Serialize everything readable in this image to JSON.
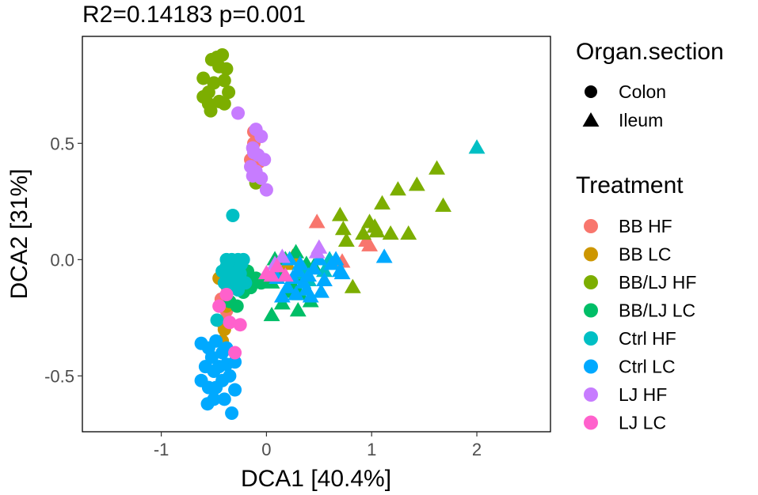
{
  "chart_data": {
    "type": "scatter",
    "title": "R2=0.14183  p=0.001",
    "xlabel": "DCA1   [40.4%]",
    "ylabel": "DCA2   [31%]",
    "xlim": [
      -1.75,
      2.7
    ],
    "ylim": [
      -0.74,
      0.96
    ],
    "xticks": [
      -1,
      0,
      1,
      2
    ],
    "xtick_labels": [
      "-1",
      "0",
      "1",
      "2"
    ],
    "yticks": [
      -0.5,
      0.0,
      0.5
    ],
    "ytick_labels": [
      "-0.5",
      "0.0",
      "0.5"
    ],
    "grid": false,
    "shape_legend": {
      "title": "Organ.section",
      "items": [
        {
          "label": "Colon",
          "shape": "circle"
        },
        {
          "label": "Ileum",
          "shape": "triangle"
        }
      ]
    },
    "color_legend": {
      "title": "Treatment",
      "items": [
        {
          "label": "BB HF",
          "color": "#F8766D"
        },
        {
          "label": "BB LC",
          "color": "#CD9600"
        },
        {
          "label": "BB/LJ HF",
          "color": "#7CAE00"
        },
        {
          "label": "BB/LJ LC",
          "color": "#00BE67"
        },
        {
          "label": "Ctrl HF",
          "color": "#00BFC4"
        },
        {
          "label": "Ctrl LC",
          "color": "#00A9FF"
        },
        {
          "label": "LJ HF",
          "color": "#C77CFF"
        },
        {
          "label": "LJ LC",
          "color": "#FF61CC"
        }
      ]
    },
    "series": [
      {
        "name": "BB HF",
        "shape": "circle",
        "points": [
          [
            -0.12,
            0.55
          ],
          [
            -0.15,
            0.43
          ],
          [
            -0.07,
            0.42
          ],
          [
            -0.1,
            0.35
          ],
          [
            -0.12,
            0.5
          ],
          [
            -0.37,
            -0.12
          ],
          [
            -0.43,
            -0.17
          ],
          [
            -0.38,
            -0.22
          ],
          [
            -0.42,
            -0.27
          ]
        ]
      },
      {
        "name": "BB HF",
        "shape": "triangle",
        "points": [
          [
            0.48,
            0.16
          ],
          [
            0.95,
            0.08
          ],
          [
            0.98,
            0.06
          ],
          [
            0.72,
            -0.01
          ],
          [
            0.36,
            -0.05
          ]
        ]
      },
      {
        "name": "BB LC",
        "shape": "circle",
        "points": [
          [
            -0.45,
            -0.08
          ],
          [
            -0.4,
            -0.3
          ],
          [
            -0.38,
            -0.2
          ],
          [
            -0.32,
            -0.1
          ],
          [
            -0.42,
            -0.35
          ]
        ]
      },
      {
        "name": "BB LC",
        "shape": "triangle",
        "points": [
          [
            0.2,
            -0.02
          ],
          [
            0.25,
            0.01
          ],
          [
            0.15,
            -0.06
          ]
        ]
      },
      {
        "name": "BB/LJ HF",
        "shape": "circle",
        "points": [
          [
            -0.6,
            0.78
          ],
          [
            -0.55,
            0.72
          ],
          [
            -0.5,
            0.76
          ],
          [
            -0.45,
            0.83
          ],
          [
            -0.4,
            0.77
          ],
          [
            -0.47,
            0.87
          ],
          [
            -0.52,
            0.86
          ],
          [
            -0.42,
            0.88
          ],
          [
            -0.38,
            0.82
          ],
          [
            -0.55,
            0.67
          ],
          [
            -0.6,
            0.7
          ],
          [
            -0.45,
            0.68
          ],
          [
            -0.53,
            0.64
          ],
          [
            -0.4,
            0.67
          ],
          [
            -0.36,
            0.72
          ],
          [
            -0.1,
            0.33
          ]
        ]
      },
      {
        "name": "BB/LJ HF",
        "shape": "triangle",
        "points": [
          [
            0.7,
            0.19
          ],
          [
            0.73,
            0.13
          ],
          [
            0.76,
            0.08
          ],
          [
            0.92,
            0.11
          ],
          [
            0.98,
            0.16
          ],
          [
            1.03,
            0.14
          ],
          [
            1.05,
            0.12
          ],
          [
            1.1,
            0.24
          ],
          [
            1.18,
            0.11
          ],
          [
            1.25,
            0.3
          ],
          [
            1.35,
            0.11
          ],
          [
            1.43,
            0.32
          ],
          [
            1.62,
            0.39
          ],
          [
            1.68,
            0.23
          ],
          [
            0.82,
            -0.12
          ]
        ]
      },
      {
        "name": "BB/LJ LC",
        "shape": "circle",
        "points": [
          [
            -0.3,
            -0.08
          ],
          [
            -0.25,
            -0.1
          ],
          [
            -0.2,
            -0.06
          ],
          [
            -0.15,
            -0.12
          ],
          [
            -0.1,
            -0.08
          ],
          [
            -0.35,
            -0.18
          ],
          [
            -0.28,
            -0.2
          ],
          [
            -0.05,
            -0.1
          ],
          [
            -0.22,
            -0.14
          ],
          [
            -0.18,
            -0.05
          ]
        ]
      },
      {
        "name": "BB/LJ LC",
        "shape": "triangle",
        "points": [
          [
            0.05,
            -0.24
          ],
          [
            0.15,
            -0.19
          ],
          [
            0.3,
            -0.22
          ],
          [
            0.32,
            -0.15
          ],
          [
            0.42,
            -0.18
          ],
          [
            0.05,
            -0.1
          ],
          [
            0.2,
            -0.14
          ],
          [
            0.28,
            0.03
          ],
          [
            0.38,
            -0.02
          ],
          [
            0.12,
            -0.05
          ],
          [
            0.35,
            -0.08
          ],
          [
            0.18,
            0.0
          ],
          [
            0.25,
            -0.11
          ],
          [
            0.45,
            -0.03
          ],
          [
            0.08,
            0.0
          ]
        ]
      },
      {
        "name": "Ctrl HF",
        "shape": "circle",
        "points": [
          [
            -0.32,
            0.19
          ],
          [
            -0.38,
            0.0
          ],
          [
            -0.33,
            0.0
          ],
          [
            -0.27,
            0.0
          ],
          [
            -0.22,
            0.0
          ],
          [
            -0.35,
            -0.05
          ],
          [
            -0.3,
            -0.04
          ],
          [
            -0.25,
            -0.06
          ],
          [
            -0.4,
            -0.1
          ],
          [
            -0.35,
            -0.12
          ],
          [
            -0.29,
            -0.1
          ],
          [
            -0.38,
            -0.03
          ],
          [
            -0.32,
            -0.07
          ],
          [
            -0.27,
            -0.13
          ],
          [
            -0.2,
            -0.1
          ],
          [
            -0.42,
            -0.05
          ],
          [
            -0.24,
            -0.02
          ],
          [
            -0.47,
            -0.26
          ]
        ]
      },
      {
        "name": "Ctrl HF",
        "shape": "triangle",
        "points": [
          [
            0.3,
            -0.06
          ],
          [
            0.35,
            -0.04
          ],
          [
            0.4,
            -0.09
          ],
          [
            2.0,
            0.48
          ],
          [
            0.55,
            -0.05
          ],
          [
            0.6,
            0.0
          ]
        ]
      },
      {
        "name": "Ctrl LC",
        "shape": "circle",
        "points": [
          [
            -0.62,
            -0.36
          ],
          [
            -0.55,
            -0.38
          ],
          [
            -0.48,
            -0.35
          ],
          [
            -0.42,
            -0.4
          ],
          [
            -0.58,
            -0.46
          ],
          [
            -0.5,
            -0.48
          ],
          [
            -0.45,
            -0.46
          ],
          [
            -0.38,
            -0.45
          ],
          [
            -0.62,
            -0.52
          ],
          [
            -0.55,
            -0.55
          ],
          [
            -0.48,
            -0.55
          ],
          [
            -0.42,
            -0.52
          ],
          [
            -0.35,
            -0.5
          ],
          [
            -0.5,
            -0.6
          ],
          [
            -0.56,
            -0.62
          ],
          [
            -0.4,
            -0.6
          ],
          [
            -0.3,
            -0.56
          ],
          [
            -0.33,
            -0.66
          ],
          [
            -0.52,
            -0.42
          ],
          [
            -0.3,
            -0.44
          ],
          [
            -0.38,
            -0.38
          ]
        ]
      },
      {
        "name": "Ctrl LC",
        "shape": "triangle",
        "points": [
          [
            0.25,
            -0.08
          ],
          [
            0.3,
            -0.05
          ],
          [
            0.35,
            -0.1
          ],
          [
            0.4,
            -0.07
          ],
          [
            0.45,
            -0.04
          ],
          [
            0.5,
            0.0
          ],
          [
            0.2,
            -0.12
          ],
          [
            0.28,
            -0.15
          ],
          [
            0.32,
            -0.02
          ],
          [
            0.38,
            -0.13
          ],
          [
            0.55,
            -0.09
          ],
          [
            0.62,
            -0.02
          ],
          [
            0.66,
            0.0
          ],
          [
            0.7,
            -0.05
          ],
          [
            0.52,
            -0.14
          ],
          [
            0.42,
            -0.16
          ],
          [
            0.1,
            -0.08
          ],
          [
            0.15,
            -0.16
          ],
          [
            0.22,
            0.0
          ],
          [
            1.12,
            0.01
          ],
          [
            0.72,
            -0.06
          ]
        ]
      },
      {
        "name": "LJ HF",
        "shape": "circle",
        "points": [
          [
            -0.27,
            0.63
          ],
          [
            -0.1,
            0.56
          ],
          [
            -0.05,
            0.53
          ],
          [
            -0.13,
            0.48
          ],
          [
            -0.08,
            0.45
          ],
          [
            -0.15,
            0.4
          ],
          [
            -0.1,
            0.38
          ],
          [
            -0.05,
            0.35
          ],
          [
            -0.13,
            0.36
          ],
          [
            -0.02,
            0.43
          ],
          [
            0.0,
            0.3
          ],
          [
            -0.12,
            0.46
          ]
        ]
      },
      {
        "name": "LJ HF",
        "shape": "triangle",
        "points": [
          [
            0.15,
            0.01
          ],
          [
            0.08,
            -0.02
          ],
          [
            0.48,
            0.03
          ],
          [
            0.5,
            0.05
          ]
        ]
      },
      {
        "name": "LJ LC",
        "shape": "circle",
        "points": [
          [
            -0.35,
            -0.27
          ],
          [
            -0.3,
            -0.4
          ],
          [
            -0.38,
            -0.15
          ],
          [
            -0.45,
            -0.2
          ],
          [
            -0.25,
            -0.28
          ]
        ]
      },
      {
        "name": "LJ LC",
        "shape": "triangle",
        "points": [
          [
            0.05,
            -0.07
          ],
          [
            0.0,
            -0.06
          ],
          [
            0.1,
            -0.03
          ],
          [
            0.18,
            -0.07
          ]
        ]
      }
    ]
  }
}
